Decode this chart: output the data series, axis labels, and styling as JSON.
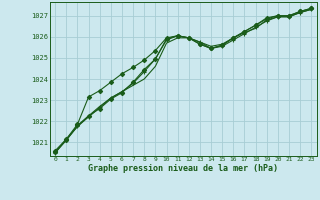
{
  "title": "Graphe pression niveau de la mer (hPa)",
  "background_color": "#cce8ee",
  "grid_color": "#a8cdd4",
  "line_color": "#1a5c1a",
  "text_color": "#1a5c1a",
  "xlim": [
    -0.5,
    23.5
  ],
  "ylim": [
    1020.35,
    1027.65
  ],
  "xticks": [
    0,
    1,
    2,
    3,
    4,
    5,
    6,
    7,
    8,
    9,
    10,
    11,
    12,
    13,
    14,
    15,
    16,
    17,
    18,
    19,
    20,
    21,
    22,
    23
  ],
  "yticks": [
    1021,
    1022,
    1023,
    1024,
    1025,
    1026,
    1027
  ],
  "series": [
    {
      "x": [
        0,
        1,
        2,
        3,
        4,
        5,
        6,
        7,
        8,
        9,
        10,
        11,
        12,
        13,
        14,
        15,
        16,
        17,
        18,
        19,
        20,
        21,
        22,
        23
      ],
      "y": [
        1020.5,
        1021.15,
        1021.75,
        1022.25,
        1022.7,
        1023.1,
        1023.4,
        1023.7,
        1024.0,
        1024.6,
        1025.7,
        1025.95,
        1025.95,
        1025.75,
        1025.55,
        1025.65,
        1025.95,
        1026.2,
        1026.4,
        1026.8,
        1026.95,
        1026.95,
        1027.15,
        1027.3
      ],
      "marker": null,
      "linewidth": 0.8
    },
    {
      "x": [
        0,
        1,
        2,
        3,
        4,
        5,
        6,
        7,
        8,
        9,
        10,
        11,
        12,
        13,
        14,
        15,
        16,
        17,
        18,
        19,
        20,
        21,
        22,
        23
      ],
      "y": [
        1020.5,
        1021.1,
        1021.75,
        1022.2,
        1022.65,
        1023.1,
        1023.4,
        1023.8,
        1024.35,
        1024.95,
        1025.85,
        1026.05,
        1025.95,
        1025.75,
        1025.45,
        1025.55,
        1025.85,
        1026.15,
        1026.45,
        1026.75,
        1026.95,
        1026.95,
        1027.15,
        1027.3
      ],
      "marker": "+",
      "linewidth": 0.8,
      "markersize": 3.5
    },
    {
      "x": [
        0,
        1,
        2,
        3,
        4,
        5,
        6,
        7,
        8,
        9,
        10,
        11,
        12,
        13,
        14,
        15,
        16,
        17,
        18,
        19,
        20,
        21,
        22,
        23
      ],
      "y": [
        1020.6,
        1021.15,
        1021.85,
        1023.15,
        1023.45,
        1023.85,
        1024.25,
        1024.55,
        1024.9,
        1025.35,
        1025.95,
        1026.05,
        1025.95,
        1025.65,
        1025.45,
        1025.6,
        1025.95,
        1026.25,
        1026.55,
        1026.9,
        1027.0,
        1027.0,
        1027.2,
        1027.35
      ],
      "marker": "D",
      "linewidth": 0.8,
      "markersize": 2.2
    },
    {
      "x": [
        0,
        1,
        2,
        3,
        4,
        5,
        6,
        7,
        8,
        9,
        10,
        11,
        12,
        13,
        14,
        15,
        16,
        17,
        18,
        19,
        20,
        21,
        22,
        23
      ],
      "y": [
        1020.55,
        1021.1,
        1021.8,
        1022.25,
        1022.6,
        1023.05,
        1023.35,
        1023.85,
        1024.45,
        1024.95,
        1025.9,
        1026.05,
        1025.95,
        1025.65,
        1025.45,
        1025.6,
        1025.95,
        1026.25,
        1026.55,
        1026.85,
        1027.0,
        1027.0,
        1027.2,
        1027.35
      ],
      "marker": "D",
      "linewidth": 0.8,
      "markersize": 2.2
    }
  ]
}
